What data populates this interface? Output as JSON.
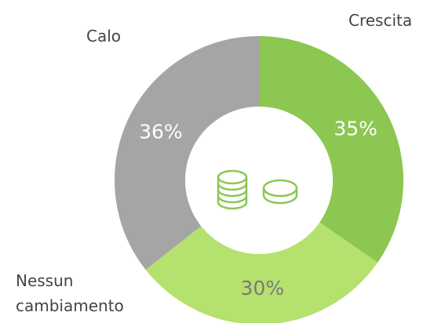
{
  "chart_data": {
    "type": "donut",
    "categories": [
      "Crescita",
      "Nessun cambiamento",
      "Calo"
    ],
    "values": [
      35,
      30,
      36
    ],
    "value_labels": [
      "35%",
      "30%",
      "36%"
    ],
    "colors": [
      "#8bc751",
      "#b5e16e",
      "#a5a5a5"
    ]
  }
}
